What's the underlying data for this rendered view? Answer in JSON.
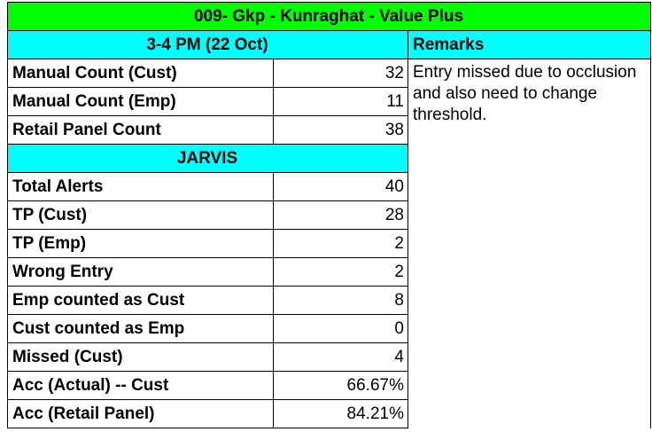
{
  "title": "009- Gkp -  Kunraghat - Value Plus",
  "colors": {
    "title_bg": "#00ff00",
    "section_bg": "#00ffff",
    "border": "#000000",
    "text": "#000000"
  },
  "time_header": "3-4 PM (22 Oct)",
  "remarks_header": "Remarks",
  "remarks_text": "Entry missed due to occlusion and also need to change threshold.",
  "manual_rows": [
    {
      "label": "Manual Count (Cust)",
      "value": "32"
    },
    {
      "label": "Manual Count (Emp)",
      "value": "11"
    },
    {
      "label": "Retail Panel Count",
      "value": "38"
    }
  ],
  "jarvis_header": "JARVIS",
  "jarvis_rows": [
    {
      "label": "Total Alerts",
      "value": "40"
    },
    {
      "label": "TP (Cust)",
      "value": "28"
    },
    {
      "label": "TP (Emp)",
      "value": "2"
    },
    {
      "label": "Wrong Entry",
      "value": "2"
    },
    {
      "label": "Emp counted as Cust",
      "value": "8"
    },
    {
      "label": "Cust counted as Emp",
      "value": "0"
    },
    {
      "label": "Missed (Cust)",
      "value": "4"
    },
    {
      "label": "Acc (Actual) -- Cust",
      "value": "66.67%"
    },
    {
      "label": "Acc (Retail Panel)",
      "value": "84.21%"
    }
  ]
}
